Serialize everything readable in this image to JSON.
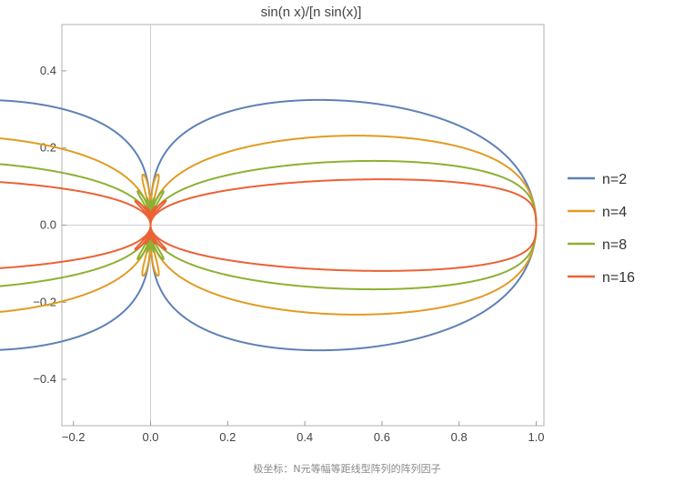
{
  "chart_data": {
    "type": "line",
    "plot_kind": "polar",
    "title": "sin(n x)/[n sin(x)]",
    "xlabel": "",
    "ylabel": "",
    "xlim": [
      -0.23,
      1.02
    ],
    "ylim": [
      -0.52,
      0.52
    ],
    "x_ticks": [
      -0.2,
      0.0,
      0.2,
      0.4,
      0.6,
      0.8,
      1.0
    ],
    "x_tick_labels": [
      "−0.2",
      "0.0",
      "0.2",
      "0.4",
      "0.6",
      "0.8",
      "1.0"
    ],
    "y_ticks": [
      -0.4,
      -0.2,
      0.0,
      0.2,
      0.4
    ],
    "y_tick_labels": [
      "−0.4",
      "−0.2",
      "0.0",
      "0.2",
      "0.4"
    ],
    "grid": false,
    "axes_through_origin": true,
    "legend_position": "right",
    "series": [
      {
        "name": "n=2",
        "n": 2,
        "color": "#5e81b5"
      },
      {
        "name": "n=4",
        "n": 4,
        "color": "#e19c24"
      },
      {
        "name": "n=8",
        "n": 8,
        "color": "#8fb032"
      },
      {
        "name": "n=16",
        "n": 16,
        "color": "#eb6235"
      }
    ]
  },
  "caption": "极坐标：N元等幅等距线型阵列的阵列因子"
}
